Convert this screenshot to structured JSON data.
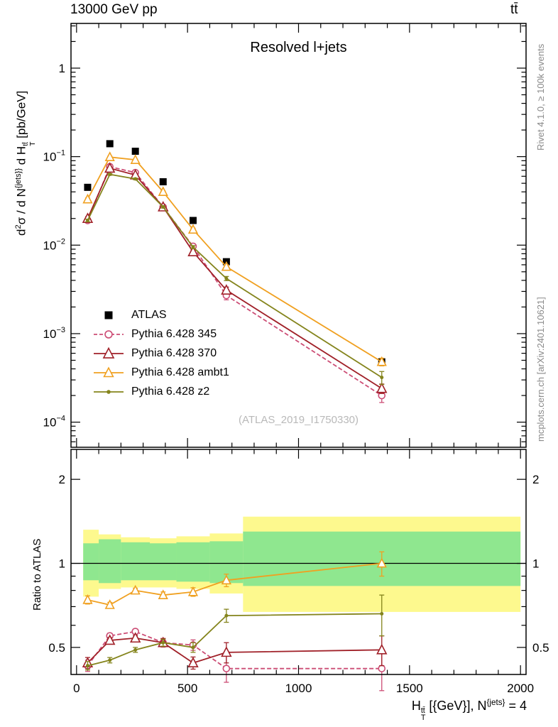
{
  "header": {
    "left": "13000 GeV pp",
    "right": "tt̄"
  },
  "main_panel": {
    "title": "Resolved l+jets",
    "watermark": "(ATLAS_2019_I1750330)"
  },
  "labels": {
    "y_main_html": "d<sup>2</sup>σ / d N<sup>{jets}}</sup> d H<span class='stk'><span>tt̄</span><span>T</span></span> [pb/GeV]",
    "ratio_y": "Ratio to ATLAS",
    "x_html": "H<span class='stk'><span>tt̄</span><span>T</span></span> [{GeV}], N<sup>{jets}</sup> = 4"
  },
  "side_notes": {
    "top": "Rivet 4.1.0, ≥ 100k events",
    "bottom": "mcplots.cern.ch [arXiv:2401.10621]"
  },
  "chart_data": {
    "type": "line",
    "title": "Resolved l+jets",
    "xlabel": "H_T^{tt̄} [{GeV}], N^{jets} = 4",
    "ylabel": "d2σ / d N^{jets}} d H_T^{tt̄} [pb/GeV]",
    "ratio_ylabel": "Ratio to ATLAS",
    "x": [
      50,
      150,
      265,
      390,
      525,
      675,
      1375
    ],
    "bin_edges": [
      30,
      100,
      200,
      330,
      450,
      600,
      750,
      2000
    ],
    "x_range": [
      -25,
      2025
    ],
    "x_ticks": [
      0,
      500,
      1000,
      1500,
      2000
    ],
    "x_minor_step": 100,
    "main_axis": {
      "log_range": [
        5.2e-05,
        3.2
      ],
      "major_decades": [
        0.0001,
        0.001,
        0.01,
        0.1,
        1
      ]
    },
    "ratio_axis": {
      "log_range": [
        0.4,
        2.56
      ],
      "ticks": [
        0.5,
        1,
        2
      ],
      "minor_ticks": [
        0.6,
        0.7,
        0.8,
        0.9
      ]
    },
    "series": [
      {
        "name": "ATLAS",
        "color": "#000000",
        "marker": "square-filled",
        "marker_size": 10,
        "line": "none",
        "values": [
          0.045,
          0.14,
          0.115,
          0.052,
          0.019,
          0.0065,
          0.00048
        ]
      },
      {
        "name": "Pythia 6.428 345",
        "color": "#cc4d75",
        "marker": "circle-open",
        "marker_size": 9,
        "line": "dashed",
        "values": [
          0.019,
          0.077,
          0.066,
          0.027,
          0.0097,
          0.0027,
          0.0002
        ],
        "ratio": [
          0.43,
          0.55,
          0.57,
          0.52,
          0.51,
          0.42,
          0.42
        ],
        "ratio_err": [
          0.02,
          0.012,
          0.012,
          0.018,
          0.022,
          0.045,
          0.07
        ]
      },
      {
        "name": "Pythia 6.428 370",
        "color": "#a02028",
        "marker": "triangle-open",
        "marker_size": 11,
        "line": "solid",
        "values": [
          0.02,
          0.074,
          0.062,
          0.027,
          0.0084,
          0.0031,
          0.00024
        ],
        "ratio": [
          0.44,
          0.53,
          0.54,
          0.52,
          0.44,
          0.48,
          0.49
        ],
        "ratio_err": [
          0.02,
          0.012,
          0.012,
          0.018,
          0.022,
          0.04,
          0.06
        ]
      },
      {
        "name": "Pythia 6.428 ambt1",
        "color": "#f0a020",
        "marker": "triangle-open",
        "marker_size": 10,
        "line": "solid",
        "values": [
          0.033,
          0.099,
          0.092,
          0.04,
          0.015,
          0.0057,
          0.00048
        ],
        "ratio": [
          0.74,
          0.71,
          0.8,
          0.77,
          0.79,
          0.87,
          1.0
        ],
        "ratio_err": [
          0.025,
          0.015,
          0.015,
          0.02,
          0.028,
          0.045,
          0.1
        ]
      },
      {
        "name": "Pythia 6.428 z2",
        "color": "#84841c",
        "marker": "dot",
        "marker_size": 5,
        "line": "solid",
        "values": [
          0.019,
          0.063,
          0.056,
          0.027,
          0.0095,
          0.0042,
          0.00032
        ],
        "ratio": [
          0.43,
          0.45,
          0.49,
          0.52,
          0.5,
          0.65,
          0.66
        ],
        "ratio_err": [
          0.015,
          0.01,
          0.01,
          0.015,
          0.02,
          0.035,
          0.11
        ]
      }
    ],
    "bands": {
      "yellow_color": "#fdf98e",
      "green_color": "#8fe78f",
      "bins": [
        {
          "x0": 30,
          "x1": 100,
          "yellow": [
            0.76,
            1.32
          ],
          "green": [
            0.87,
            1.18
          ]
        },
        {
          "x0": 100,
          "x1": 200,
          "yellow": [
            0.81,
            1.27
          ],
          "green": [
            0.85,
            1.22
          ]
        },
        {
          "x0": 200,
          "x1": 330,
          "yellow": [
            0.82,
            1.24
          ],
          "green": [
            0.87,
            1.19
          ]
        },
        {
          "x0": 330,
          "x1": 450,
          "yellow": [
            0.82,
            1.23
          ],
          "green": [
            0.87,
            1.18
          ]
        },
        {
          "x0": 450,
          "x1": 600,
          "yellow": [
            0.81,
            1.25
          ],
          "green": [
            0.86,
            1.19
          ]
        },
        {
          "x0": 600,
          "x1": 750,
          "yellow": [
            0.78,
            1.28
          ],
          "green": [
            0.85,
            1.2
          ]
        },
        {
          "x0": 750,
          "x1": 2000,
          "yellow": [
            0.67,
            1.47
          ],
          "green": [
            0.83,
            1.3
          ]
        }
      ]
    },
    "legend_position": "middle-left",
    "grid": false
  }
}
